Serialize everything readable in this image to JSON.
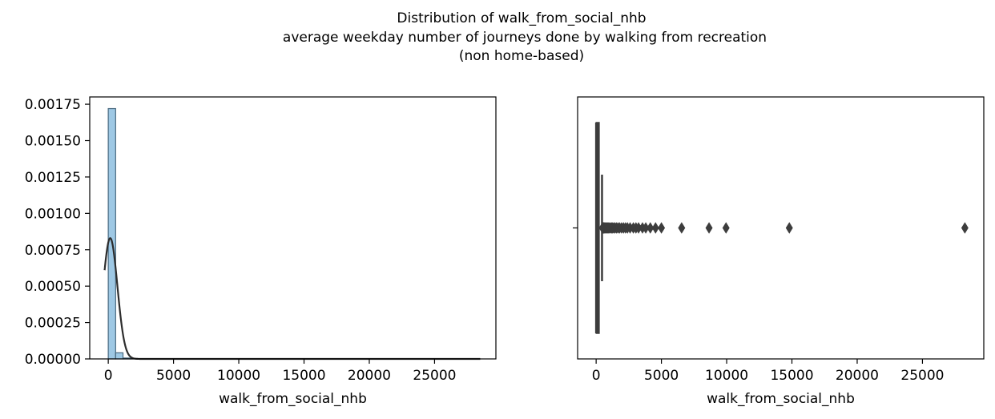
{
  "figure": {
    "title_lines": [
      "Distribution of walk_from_social_nhb",
      "average weekday number of journeys done by walking from recreation",
      "(non home-based)"
    ]
  },
  "colors": {
    "hist_fill": "#9ec8e4",
    "hist_edge": "#4a6a80",
    "kde_line": "#2d2d2d",
    "box_color": "#3d3d3d",
    "axes": "#000000",
    "background": "#ffffff"
  },
  "chart_data": [
    {
      "type": "histogram",
      "variable": "walk_from_social_nhb",
      "xlabel": "walk_from_social_nhb",
      "ylabel": "",
      "xlim": [
        -1420,
        29700
      ],
      "ylim": [
        0,
        0.0018
      ],
      "x_ticks": [
        0,
        5000,
        10000,
        15000,
        20000,
        25000
      ],
      "y_ticks": [
        0.0,
        0.00025,
        0.0005,
        0.00075,
        0.001,
        0.00125,
        0.0015,
        0.00175
      ],
      "y_tick_labels": [
        "0.00000",
        "0.00025",
        "0.00050",
        "0.00075",
        "0.00100",
        "0.00125",
        "0.00150",
        "0.00175"
      ],
      "bin_width": 565,
      "bins": [
        {
          "x0": 0,
          "x1": 565,
          "density": 0.00172
        },
        {
          "x0": 565,
          "x1": 1130,
          "density": 4.2e-05
        },
        {
          "x0": 1130,
          "x1": 1695,
          "density": 6e-06
        },
        {
          "x0": 1695,
          "x1": 2260,
          "density": 3e-06
        },
        {
          "x0": 2260,
          "x1": 2825,
          "density": 2e-06
        },
        {
          "x0": 2825,
          "x1": 3390,
          "density": 1.5e-06
        },
        {
          "x0": 3390,
          "x1": 3955,
          "density": 1e-06
        },
        {
          "x0": 3955,
          "x1": 4520,
          "density": 8e-07
        },
        {
          "x0": 4520,
          "x1": 5085,
          "density": 6e-07
        },
        {
          "x0": 6215,
          "x1": 6780,
          "density": 5e-07
        },
        {
          "x0": 8475,
          "x1": 9040,
          "density": 5e-07
        },
        {
          "x0": 9605,
          "x1": 10170,
          "density": 5e-07
        },
        {
          "x0": 14690,
          "x1": 15255,
          "density": 5e-07
        },
        {
          "x0": 27685,
          "x1": 28250,
          "density": 5e-07
        }
      ],
      "kde": {
        "x_range": [
          -280,
          28500
        ],
        "peak_x": 150,
        "peak_density": 0.00083,
        "density_at_left_end": 0.00061,
        "bandwidth": 470
      }
    },
    {
      "type": "box",
      "variable": "walk_from_social_nhb",
      "xlabel": "walk_from_social_nhb",
      "orient": "horizontal",
      "xlim": [
        -1420,
        29700
      ],
      "x_ticks": [
        0,
        5000,
        10000,
        15000,
        20000,
        25000
      ],
      "y_tick": "",
      "box": {
        "q1": 10,
        "median": 60,
        "q3": 230,
        "whisker_low": 0,
        "whisker_high": 450
      },
      "outliers": [
        480,
        520,
        560,
        600,
        650,
        700,
        760,
        820,
        880,
        950,
        1020,
        1100,
        1180,
        1260,
        1350,
        1450,
        1560,
        1680,
        1800,
        1950,
        2100,
        2250,
        2400,
        2600,
        2850,
        3050,
        3250,
        3550,
        3800,
        4150,
        4550,
        5000,
        6550,
        8650,
        9950,
        14800,
        28250
      ]
    }
  ]
}
